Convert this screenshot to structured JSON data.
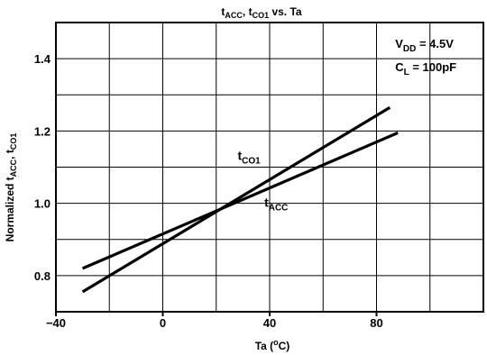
{
  "chart_data": {
    "type": "line",
    "title": {
      "parts": [
        {
          "main": "t",
          "sub": "ACC"
        },
        {
          "main": ", t",
          "sub": "CO1"
        },
        {
          "main": " vs. Ta",
          "sub": ""
        }
      ]
    },
    "xlabel": {
      "before": "Ta (",
      "sup": "o",
      "after": "C)"
    },
    "ylabel": {
      "parts": [
        {
          "main": "Normalized t",
          "sub": "ACC"
        },
        {
          "main": ", t",
          "sub": "CO1"
        }
      ]
    },
    "xlim": [
      -40,
      120
    ],
    "ylim": [
      0.7,
      1.5
    ],
    "x_ticks": [
      {
        "value": -40,
        "label": "−40"
      },
      {
        "value": 0,
        "label": "0"
      },
      {
        "value": 40,
        "label": "40"
      },
      {
        "value": 80,
        "label": "80"
      }
    ],
    "y_ticks": [
      {
        "value": 0.8,
        "label": "0.8"
      },
      {
        "value": 1.0,
        "label": "1.0"
      },
      {
        "value": 1.2,
        "label": "1.2"
      },
      {
        "value": 1.4,
        "label": "1.4"
      }
    ],
    "x_grid": [
      -20,
      0,
      20,
      40,
      60,
      80,
      100
    ],
    "y_grid": [
      0.8,
      0.9,
      1.0,
      1.1,
      1.2,
      1.3,
      1.4
    ],
    "grid": true,
    "series": [
      {
        "name": "tCO1",
        "label": {
          "main": "t",
          "sub": "CO1"
        },
        "label_at": {
          "x": 28,
          "y": 1.12
        },
        "x": [
          -30,
          85
        ],
        "y": [
          0.755,
          1.265
        ]
      },
      {
        "name": "tACC",
        "label": {
          "main": "t",
          "sub": "ACC"
        },
        "label_at": {
          "x": 38,
          "y": 0.99
        },
        "x": [
          -30,
          88
        ],
        "y": [
          0.82,
          1.195
        ]
      }
    ],
    "annotations": [
      {
        "main": "V",
        "sub": "DD",
        "after": " = 4.5V",
        "at": {
          "x": 87,
          "y": 1.43
        }
      },
      {
        "main": "C",
        "sub": "L",
        "after": " = 100pF",
        "at": {
          "x": 87,
          "y": 1.365
        }
      }
    ]
  }
}
